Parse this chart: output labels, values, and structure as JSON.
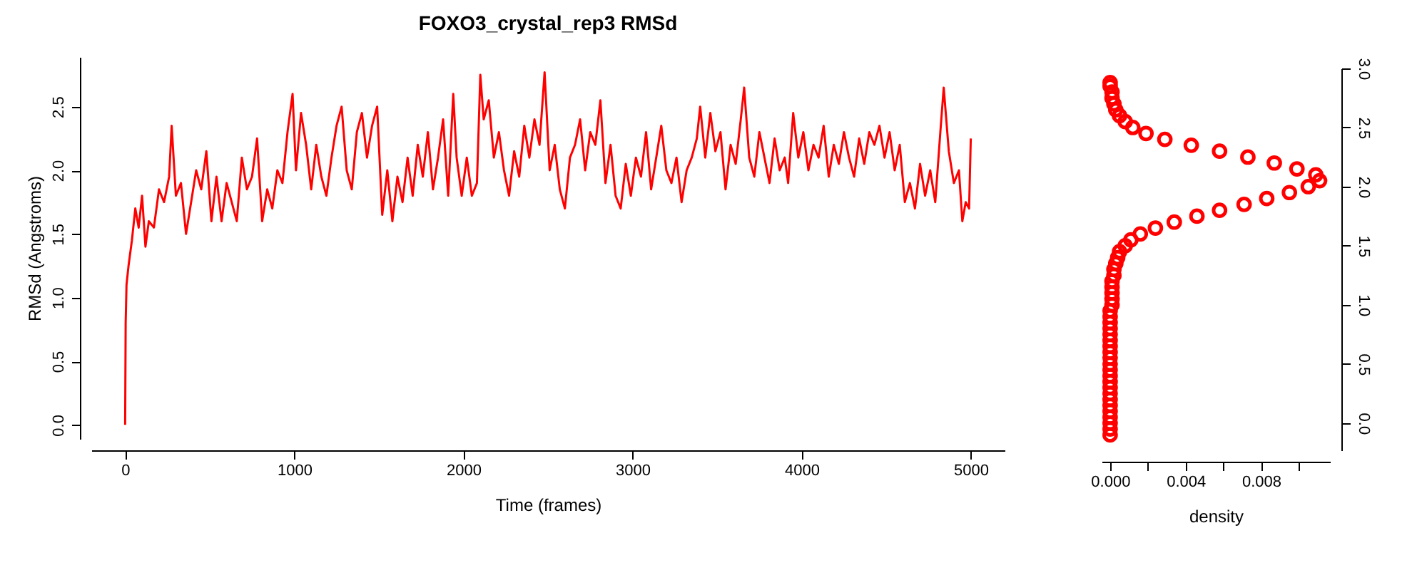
{
  "chart_data": [
    {
      "type": "line",
      "title": "FOXO3_crystal_rep3 RMSd",
      "xlabel": "Time (frames)",
      "ylabel": "RMSd (Angstroms)",
      "x": [
        0,
        3,
        8,
        20,
        40,
        60,
        80,
        100,
        120,
        140,
        170,
        200,
        230,
        260,
        275,
        300,
        330,
        360,
        390,
        420,
        450,
        480,
        510,
        540,
        570,
        600,
        630,
        660,
        690,
        720,
        750,
        780,
        810,
        840,
        870,
        900,
        930,
        960,
        990,
        1010,
        1040,
        1070,
        1100,
        1130,
        1160,
        1190,
        1220,
        1250,
        1280,
        1310,
        1340,
        1370,
        1400,
        1430,
        1460,
        1490,
        1520,
        1550,
        1580,
        1610,
        1640,
        1670,
        1700,
        1730,
        1760,
        1790,
        1820,
        1850,
        1880,
        1910,
        1940,
        1960,
        1990,
        2020,
        2050,
        2080,
        2100,
        2120,
        2150,
        2180,
        2210,
        2240,
        2270,
        2300,
        2330,
        2360,
        2390,
        2420,
        2450,
        2480,
        2510,
        2540,
        2570,
        2600,
        2630,
        2660,
        2690,
        2720,
        2750,
        2780,
        2810,
        2840,
        2870,
        2900,
        2930,
        2960,
        2990,
        3020,
        3050,
        3080,
        3110,
        3140,
        3170,
        3200,
        3230,
        3260,
        3290,
        3320,
        3350,
        3380,
        3400,
        3430,
        3460,
        3490,
        3520,
        3550,
        3580,
        3610,
        3640,
        3660,
        3690,
        3720,
        3750,
        3780,
        3810,
        3840,
        3870,
        3900,
        3920,
        3950,
        3980,
        4010,
        4040,
        4070,
        4100,
        4130,
        4160,
        4190,
        4220,
        4250,
        4280,
        4310,
        4340,
        4370,
        4400,
        4430,
        4460,
        4490,
        4520,
        4550,
        4580,
        4610,
        4640,
        4670,
        4700,
        4730,
        4760,
        4790,
        4820,
        4840,
        4870,
        4900,
        4930,
        4950,
        4970,
        4990,
        5000
      ],
      "series": [
        {
          "color": "#ff0000",
          "values": [
            0,
            0.8,
            1.1,
            1.25,
            1.45,
            1.7,
            1.55,
            1.8,
            1.4,
            1.6,
            1.55,
            1.85,
            1.75,
            1.95,
            2.35,
            1.8,
            1.9,
            1.5,
            1.75,
            2.0,
            1.85,
            2.15,
            1.6,
            1.95,
            1.6,
            1.9,
            1.75,
            1.6,
            2.1,
            1.85,
            1.95,
            2.25,
            1.6,
            1.85,
            1.7,
            2.0,
            1.9,
            2.3,
            2.6,
            2.0,
            2.45,
            2.2,
            1.85,
            2.2,
            1.95,
            1.8,
            2.1,
            2.35,
            2.5,
            2.0,
            1.85,
            2.3,
            2.45,
            2.1,
            2.35,
            2.5,
            1.65,
            2.0,
            1.6,
            1.95,
            1.75,
            2.1,
            1.8,
            2.2,
            1.95,
            2.3,
            1.85,
            2.1,
            2.4,
            1.8,
            2.6,
            2.1,
            1.8,
            2.1,
            1.8,
            1.9,
            2.75,
            2.4,
            2.55,
            2.1,
            2.3,
            2.0,
            1.8,
            2.15,
            1.95,
            2.35,
            2.1,
            2.4,
            2.2,
            2.77,
            2.0,
            2.2,
            1.85,
            1.7,
            2.1,
            2.2,
            2.4,
            2.0,
            2.3,
            2.2,
            2.55,
            1.9,
            2.2,
            1.8,
            1.7,
            2.05,
            1.8,
            2.1,
            1.95,
            2.3,
            1.85,
            2.1,
            2.35,
            2.0,
            1.9,
            2.1,
            1.75,
            2.0,
            2.1,
            2.25,
            2.5,
            2.1,
            2.45,
            2.15,
            2.3,
            1.85,
            2.2,
            2.05,
            2.4,
            2.65,
            2.1,
            1.95,
            2.3,
            2.1,
            1.9,
            2.25,
            2.0,
            2.1,
            1.9,
            2.45,
            2.1,
            2.3,
            2.0,
            2.2,
            2.1,
            2.35,
            1.95,
            2.2,
            2.05,
            2.3,
            2.1,
            1.95,
            2.25,
            2.05,
            2.3,
            2.2,
            2.35,
            2.1,
            2.3,
            2.0,
            2.2,
            1.75,
            1.9,
            1.7,
            2.05,
            1.8,
            2.0,
            1.75,
            2.3,
            2.65,
            2.15,
            1.9,
            2.0,
            1.6,
            1.75,
            1.7,
            2.25
          ]
        }
      ],
      "xlim": [
        -200,
        5200
      ],
      "ylim": [
        -0.11,
        2.89
      ],
      "xticks": [
        0,
        1000,
        2000,
        3000,
        4000,
        5000
      ],
      "yticks": [
        {
          "value": 0,
          "label": "0.0"
        },
        0.5,
        {
          "value": 1,
          "label": "1.0"
        },
        1.5,
        {
          "value": 2,
          "label": "2.0"
        },
        2.5
      ]
    },
    {
      "type": "scatter",
      "xlabel": "density",
      "color": "#ff0000",
      "marker": "circle",
      "x": [
        0,
        0,
        0,
        0,
        0,
        0,
        0,
        0,
        0,
        0,
        0,
        0,
        0,
        0,
        0,
        0,
        0,
        0,
        0,
        0,
        0,
        0,
        0.0001,
        0.0001,
        0.0001,
        0.0001,
        0.0001,
        0.0002,
        0.0002,
        0.0003,
        0.0004,
        0.0005,
        0.0008,
        0.0011,
        0.0016,
        0.0024,
        0.0034,
        0.0046,
        0.0058,
        0.0071,
        0.0083,
        0.0095,
        0.0105,
        0.0111,
        0.0109,
        0.0099,
        0.0087,
        0.0073,
        0.0058,
        0.0043,
        0.0029,
        0.0019,
        0.0012,
        0.0008,
        0.0005,
        0.0003,
        0.0002,
        0.0001,
        0.0001,
        0,
        0
      ],
      "values": [
        -0.1,
        -0.05,
        0,
        0.05,
        0.1,
        0.15,
        0.2,
        0.25,
        0.3,
        0.35,
        0.4,
        0.45,
        0.5,
        0.55,
        0.6,
        0.65,
        0.7,
        0.75,
        0.8,
        0.85,
        0.9,
        0.95,
        1.0,
        1.05,
        1.1,
        1.15,
        1.2,
        1.25,
        1.3,
        1.35,
        1.4,
        1.45,
        1.5,
        1.55,
        1.6,
        1.65,
        1.7,
        1.75,
        1.8,
        1.85,
        1.9,
        1.95,
        2.0,
        2.05,
        2.1,
        2.15,
        2.2,
        2.25,
        2.3,
        2.35,
        2.4,
        2.45,
        2.5,
        2.55,
        2.6,
        2.65,
        2.7,
        2.75,
        2.8,
        2.85,
        2.88
      ],
      "xlim": [
        -0.00045,
        0.01165
      ],
      "ylim": [
        -0.23,
        3.0
      ],
      "xticks": [
        {
          "value": 0,
          "label": "0.000"
        },
        {
          "value": 0.002,
          "label": null
        },
        0.004,
        {
          "value": 0.006,
          "label": null
        },
        0.008,
        {
          "value": 0.01,
          "label": null
        }
      ],
      "yticks": [
        {
          "value": 0,
          "label": "0.0"
        },
        0.5,
        {
          "value": 1,
          "label": "1.0"
        },
        1.5,
        {
          "value": 2,
          "label": "2.0"
        },
        2.5,
        {
          "value": 3,
          "label": "3.0"
        }
      ]
    }
  ]
}
